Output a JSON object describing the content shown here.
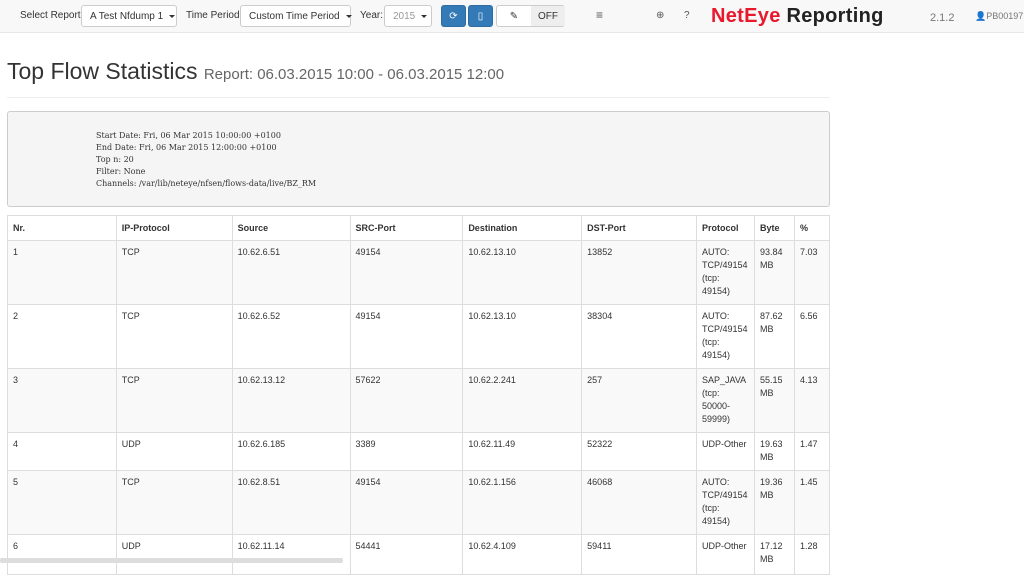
{
  "toolbar": {
    "select_report_label": "Select Report:",
    "report": "A Test Nfdump 1",
    "time_period_label": "Time Period:",
    "time_period": "Custom Time Period",
    "year_label": "Year:",
    "year": "2015",
    "toggle_off": "OFF",
    "icons": [
      "refresh-icon",
      "pdf-icon",
      "pencil-icon",
      "menu-icon",
      "globe-icon",
      "help-icon",
      "user-icon"
    ]
  },
  "brand": {
    "red": "NetEye",
    "dark": " Reporting",
    "version": "2.1.2",
    "user": "PB00197"
  },
  "page": {
    "title": "Top Flow Statistics",
    "subtitle": "Report: 06.03.2015 10:00 - 06.03.2015 12:00"
  },
  "info": "Start Date: Fri, 06 Mar 2015 10:00:00 +0100\nEnd Date: Fri, 06 Mar 2015 12:00:00 +0100\nTop n: 20\nFilter: None\nChannels: /var/lib/neteye/nfsen/flows-data/live/BZ_RM",
  "table": {
    "columns": [
      "Nr.",
      "IP-Protocol",
      "Source",
      "SRC-Port",
      "Destination",
      "DST-Port",
      "Protocol",
      "Byte",
      "%"
    ],
    "rows": [
      [
        "1",
        "TCP",
        "10.62.6.51",
        "49154",
        "10.62.13.10",
        "13852",
        "AUTO: TCP/49154 (tcp: 49154)",
        "93.84 MB",
        "7.03"
      ],
      [
        "2",
        "TCP",
        "10.62.6.52",
        "49154",
        "10.62.13.10",
        "38304",
        "AUTO: TCP/49154 (tcp: 49154)",
        "87.62 MB",
        "6.56"
      ],
      [
        "3",
        "TCP",
        "10.62.13.12",
        "57622",
        "10.62.2.241",
        "257",
        "SAP_JAVA (tcp: 50000-59999)",
        "55.15 MB",
        "4.13"
      ],
      [
        "4",
        "UDP",
        "10.62.6.185",
        "3389",
        "10.62.11.49",
        "52322",
        "UDP-Other",
        "19.63 MB",
        "1.47"
      ],
      [
        "5",
        "TCP",
        "10.62.8.51",
        "49154",
        "10.62.1.156",
        "46068",
        "AUTO: TCP/49154 (tcp: 49154)",
        "19.36 MB",
        "1.45"
      ],
      [
        "6",
        "UDP",
        "10.62.11.14",
        "54441",
        "10.62.4.109",
        "59411",
        "UDP-Other",
        "17.12 MB",
        "1.28"
      ]
    ]
  },
  "colors": {
    "brand_red": "#e8192c",
    "primary": "#337ab7"
  }
}
